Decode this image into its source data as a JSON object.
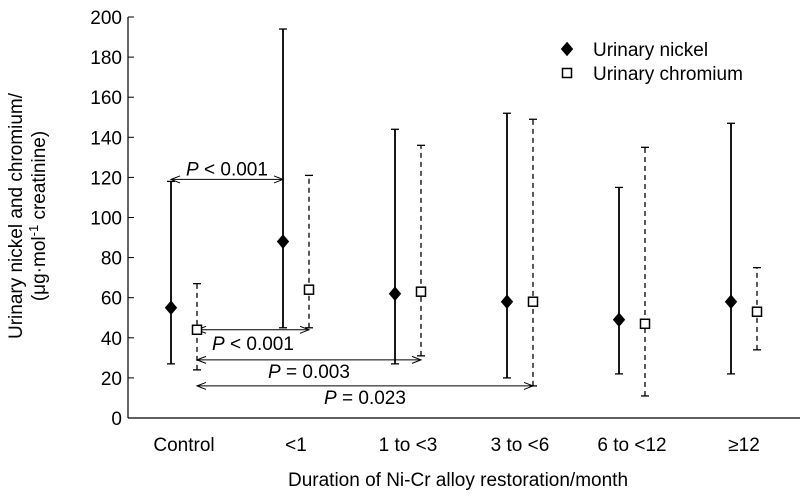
{
  "chart_data": {
    "type": "scatter",
    "title": "",
    "xlabel": "Duration of Ni-Cr alloy restoration/month",
    "ylabel_line1": "Urinary nickel and chromium/",
    "ylabel_line2_pre": "(μg·mol",
    "ylabel_line2_sup": "-1",
    "ylabel_line2_post": " creatinine)",
    "ylim": [
      0,
      200
    ],
    "yticks": [
      0,
      20,
      40,
      60,
      80,
      100,
      120,
      140,
      160,
      180,
      200
    ],
    "categories": [
      "Control",
      "<1",
      "1 to <3",
      "3 to <6",
      "6 to <12",
      "≥12"
    ],
    "legend_position": "top-right",
    "series": [
      {
        "name": "Urinary nickel",
        "marker": "filled-diamond",
        "line": "solid",
        "points": [
          {
            "mean": 55,
            "low": 27,
            "high": 118
          },
          {
            "mean": 88,
            "low": 45,
            "high": 194
          },
          {
            "mean": 62,
            "low": 27,
            "high": 144
          },
          {
            "mean": 58,
            "low": 20,
            "high": 152
          },
          {
            "mean": 49,
            "low": 22,
            "high": 115
          },
          {
            "mean": 58,
            "low": 22,
            "high": 147
          }
        ]
      },
      {
        "name": "Urinary chromium",
        "marker": "open-square",
        "line": "dashed",
        "points": [
          {
            "mean": 44,
            "low": 24,
            "high": 67
          },
          {
            "mean": 64,
            "low": 45,
            "high": 121
          },
          {
            "mean": 63,
            "low": 31,
            "high": 136
          },
          {
            "mean": 58,
            "low": 16,
            "high": 149
          },
          {
            "mean": 47,
            "low": 11,
            "high": 135
          },
          {
            "mean": 53,
            "low": 34,
            "high": 75
          }
        ]
      }
    ],
    "annotations": [
      {
        "italic": "P",
        "text": " < 0.001",
        "y": 121,
        "bracket": {
          "from": 0,
          "from_series": 0,
          "to": 1,
          "to_series": 0,
          "y": 119
        }
      },
      {
        "italic": "P",
        "text": " < 0.001",
        "y": 34,
        "bracket": {
          "from": 0,
          "from_series": 1,
          "to": 1,
          "to_series": 1,
          "y": 44
        }
      },
      {
        "italic": "P",
        "text": " = 0.003",
        "y": 20,
        "bracket": {
          "from": 0,
          "from_series": 1,
          "to": 2,
          "to_series": 1,
          "y": 29
        }
      },
      {
        "italic": "P",
        "text": " = 0.023",
        "y": 7,
        "bracket": {
          "from": 0,
          "from_series": 1,
          "to": 3,
          "to_series": 1,
          "y": 16
        }
      }
    ]
  }
}
